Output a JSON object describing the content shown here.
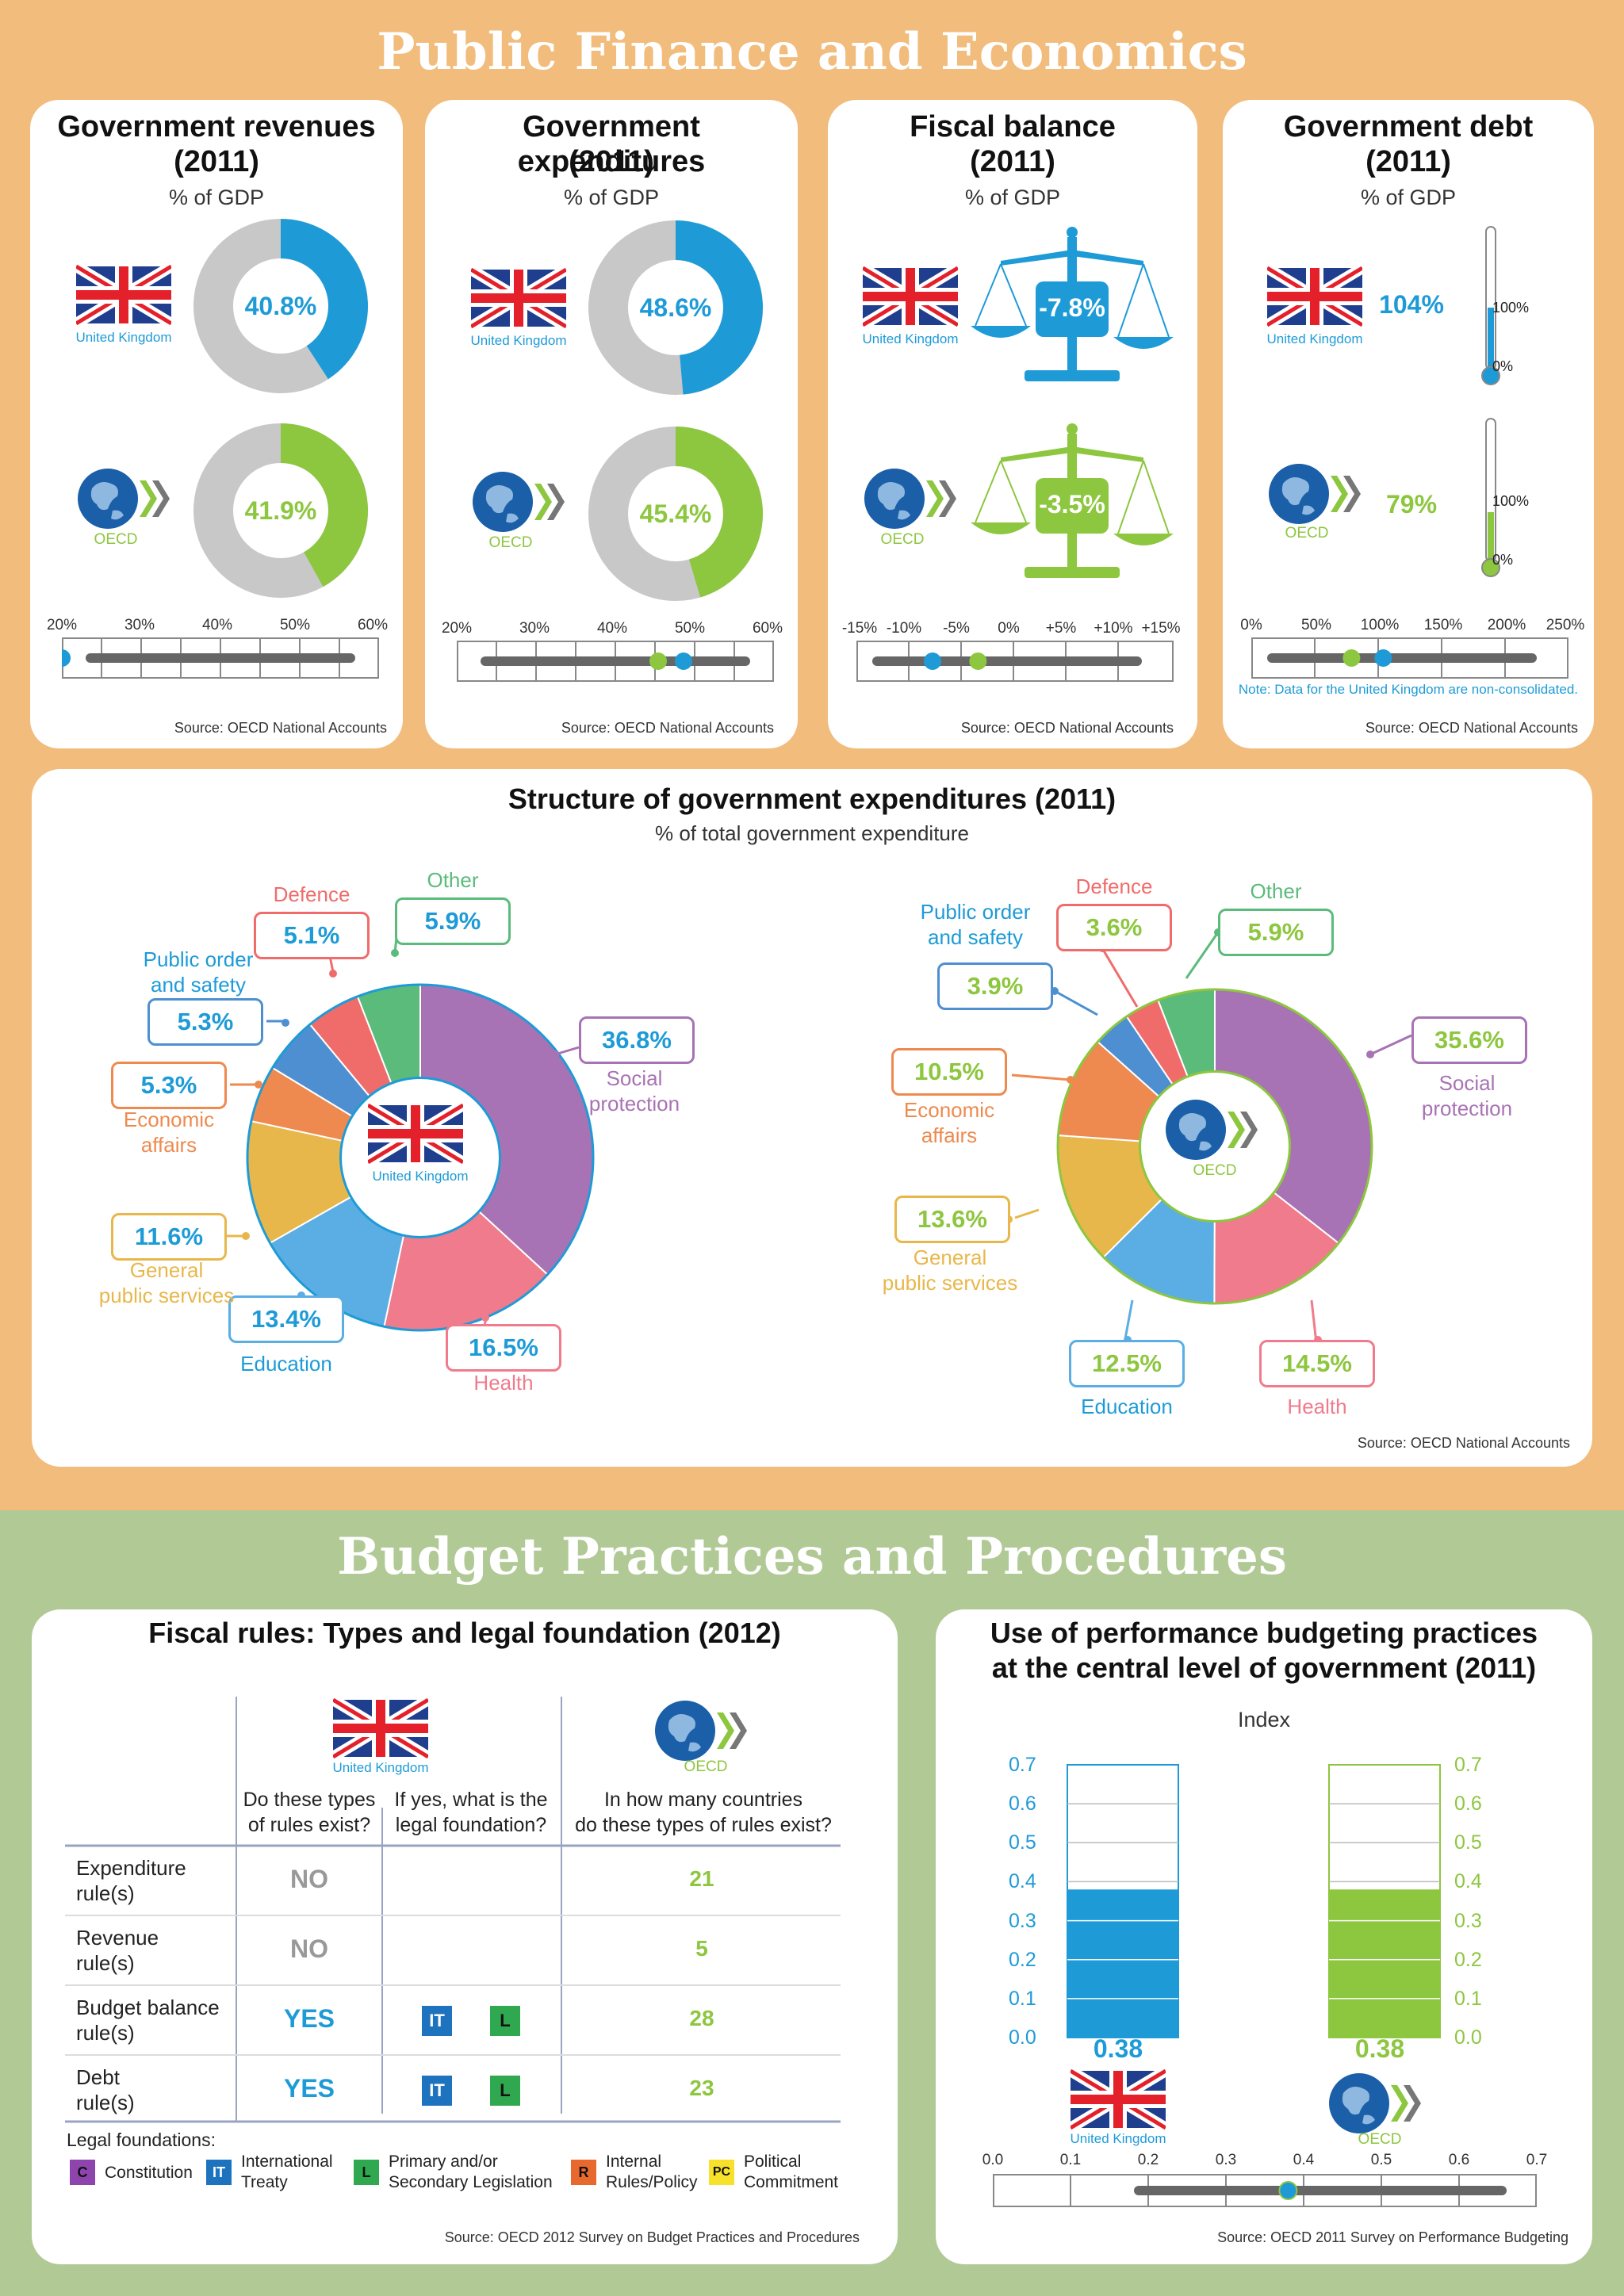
{
  "banners": {
    "top": "Public Finance and Economics",
    "bottom": "Budget Practices and Procedures"
  },
  "labels": {
    "uk": "United Kingdom",
    "oecd": "OECD"
  },
  "colors": {
    "uk": "#1e9bd7",
    "oecd": "#8dc63f",
    "grey": "#c8c8c8"
  },
  "cards": {
    "revenues": {
      "title1": "Government revenues",
      "title2": "(2011)",
      "sub": "% of GDP",
      "uk": "40.8%",
      "oecd": "41.9%",
      "ticks": [
        "20%",
        "30%",
        "40%",
        "50%",
        "60%"
      ],
      "source": "Source: OECD National Accounts"
    },
    "expenditures": {
      "title1": "Government expenditures",
      "title2": "(2011)",
      "sub": "% of GDP",
      "uk": "48.6%",
      "oecd": "45.4%",
      "ticks": [
        "20%",
        "30%",
        "40%",
        "50%",
        "60%"
      ],
      "source": "Source: OECD National Accounts"
    },
    "balance": {
      "title1": "Fiscal balance",
      "title2": "(2011)",
      "sub": "% of GDP",
      "uk": "-7.8%",
      "oecd": "-3.5%",
      "ticks": [
        "-15%",
        "-10%",
        "-5%",
        "0%",
        "+5%",
        "+10%",
        "+15%"
      ],
      "source": "Source: OECD National Accounts"
    },
    "debt": {
      "title1": "Government debt",
      "title2": "(2011)",
      "sub": "% of GDP",
      "uk": "104%",
      "oecd": "79%",
      "therm_top": "100%",
      "therm_bottom": "0%",
      "ticks": [
        "0%",
        "50%",
        "100%",
        "150%",
        "200%",
        "250%"
      ],
      "note": "Note: Data for the United Kingdom are non-consolidated.",
      "source": "Source: OECD National Accounts"
    }
  },
  "structure": {
    "title": "Structure of government expenditures (2011)",
    "sub": "% of total government expenditure",
    "source": "Source: OECD National Accounts",
    "uk": {
      "social": "36.8%",
      "health": "16.5%",
      "education": "13.4%",
      "general": "11.6%",
      "economic": "5.3%",
      "public": "5.3%",
      "defence": "5.1%",
      "other": "5.9%"
    },
    "oecd": {
      "social": "35.6%",
      "health": "14.5%",
      "education": "12.5%",
      "general": "13.6%",
      "economic": "10.5%",
      "public": "3.9%",
      "defence": "3.6%",
      "other": "5.9%"
    },
    "names": {
      "social1": "Social",
      "social2": "protection",
      "health": "Health",
      "education": "Education",
      "general1": "General",
      "general2": "public services",
      "economic1": "Economic",
      "economic2": "affairs",
      "public1": "Public order",
      "public2": "and safety",
      "defence": "Defence",
      "other": "Other"
    },
    "cat_colors": {
      "social": "#a873b4",
      "health": "#ef7b8c",
      "education": "#5aaee3",
      "general": "#e8b74b",
      "economic": "#ee8a4f",
      "public": "#4d8fd0",
      "defence": "#f06c6b",
      "other": "#5bbb7b"
    }
  },
  "fiscal_rules": {
    "title": "Fiscal rules: Types and legal foundation (2012)",
    "col1": [
      "Do these types",
      "of rules exist?"
    ],
    "col2": [
      "If yes, what is the",
      "legal foundation?"
    ],
    "col3": [
      "In how many countries",
      "do these types of rules exist?"
    ],
    "rows": [
      {
        "name1": "Expenditure",
        "name2": "rule(s)",
        "exists": "NO",
        "count": "21"
      },
      {
        "name1": "Revenue",
        "name2": "rule(s)",
        "exists": "NO",
        "count": "5"
      },
      {
        "name1": "Budget balance",
        "name2": "rule(s)",
        "exists": "YES",
        "count": "28",
        "b1": "IT",
        "b2": "L"
      },
      {
        "name1": "Debt",
        "name2": "rule(s)",
        "exists": "YES",
        "count": "23",
        "b1": "IT",
        "b2": "L"
      }
    ],
    "legend_title": "Legal foundations:",
    "legend": [
      {
        "code": "C",
        "t1": "Constitution",
        "t2": "",
        "color": "#8e44ad"
      },
      {
        "code": "IT",
        "t1": "International",
        "t2": "Treaty",
        "color": "#1e73be"
      },
      {
        "code": "L",
        "t1": "Primary and/or",
        "t2": "Secondary Legislation",
        "color": "#2fa84f"
      },
      {
        "code": "R",
        "t1": "Internal",
        "t2": "Rules/Policy",
        "color": "#e8692d"
      },
      {
        "code": "PC",
        "t1": "Political",
        "t2": "Commitment",
        "color": "#f7e12b"
      }
    ],
    "source": "Source: OECD 2012 Survey on Budget Practices and Procedures"
  },
  "performance": {
    "title1": "Use of performance budgeting practices",
    "title2": "at the central level of government (2011)",
    "sub": "Index",
    "yticks": [
      "0.7",
      "0.6",
      "0.5",
      "0.4",
      "0.3",
      "0.2",
      "0.1",
      "0.0"
    ],
    "xticks": [
      "0.0",
      "0.1",
      "0.2",
      "0.3",
      "0.4",
      "0.5",
      "0.6",
      "0.7"
    ],
    "uk": "0.38",
    "oecd": "0.38",
    "source": "Source: OECD 2011 Survey on Performance Budgeting"
  },
  "chart_data": [
    {
      "type": "pie",
      "title": "Government revenues (2011)",
      "ylabel": "% of GDP",
      "series": [
        {
          "name": "United Kingdom",
          "values": [
            40.8
          ]
        },
        {
          "name": "OECD",
          "values": [
            41.9
          ]
        }
      ],
      "xlim": [
        20,
        60
      ]
    },
    {
      "type": "pie",
      "title": "Government expenditures (2011)",
      "ylabel": "% of GDP",
      "series": [
        {
          "name": "United Kingdom",
          "values": [
            48.6
          ]
        },
        {
          "name": "OECD",
          "values": [
            45.4
          ]
        }
      ],
      "xlim": [
        20,
        60
      ]
    },
    {
      "type": "bar",
      "title": "Fiscal balance (2011)",
      "ylabel": "% of GDP",
      "series": [
        {
          "name": "United Kingdom",
          "values": [
            -7.8
          ]
        },
        {
          "name": "OECD",
          "values": [
            -3.5
          ]
        }
      ],
      "xlim": [
        -15,
        15
      ]
    },
    {
      "type": "bar",
      "title": "Government debt (2011)",
      "ylabel": "% of GDP",
      "series": [
        {
          "name": "United Kingdom",
          "values": [
            104
          ]
        },
        {
          "name": "OECD",
          "values": [
            79
          ]
        }
      ],
      "xlim": [
        0,
        250
      ]
    },
    {
      "type": "pie",
      "title": "Structure of government expenditures (2011)",
      "categories": [
        "Social protection",
        "Health",
        "Education",
        "General public services",
        "Economic affairs",
        "Public order and safety",
        "Defence",
        "Other"
      ],
      "series": [
        {
          "name": "United Kingdom",
          "values": [
            36.8,
            16.5,
            13.4,
            11.6,
            5.3,
            5.3,
            5.1,
            5.9
          ]
        },
        {
          "name": "OECD",
          "values": [
            35.6,
            14.5,
            12.5,
            13.6,
            10.5,
            3.9,
            3.6,
            5.9
          ]
        }
      ]
    },
    {
      "type": "bar",
      "title": "Use of performance budgeting practices at the central level of government (2011)",
      "ylabel": "Index",
      "categories": [
        "United Kingdom",
        "OECD"
      ],
      "values": [
        0.38,
        0.38
      ],
      "ylim": [
        0,
        0.7
      ]
    }
  ]
}
